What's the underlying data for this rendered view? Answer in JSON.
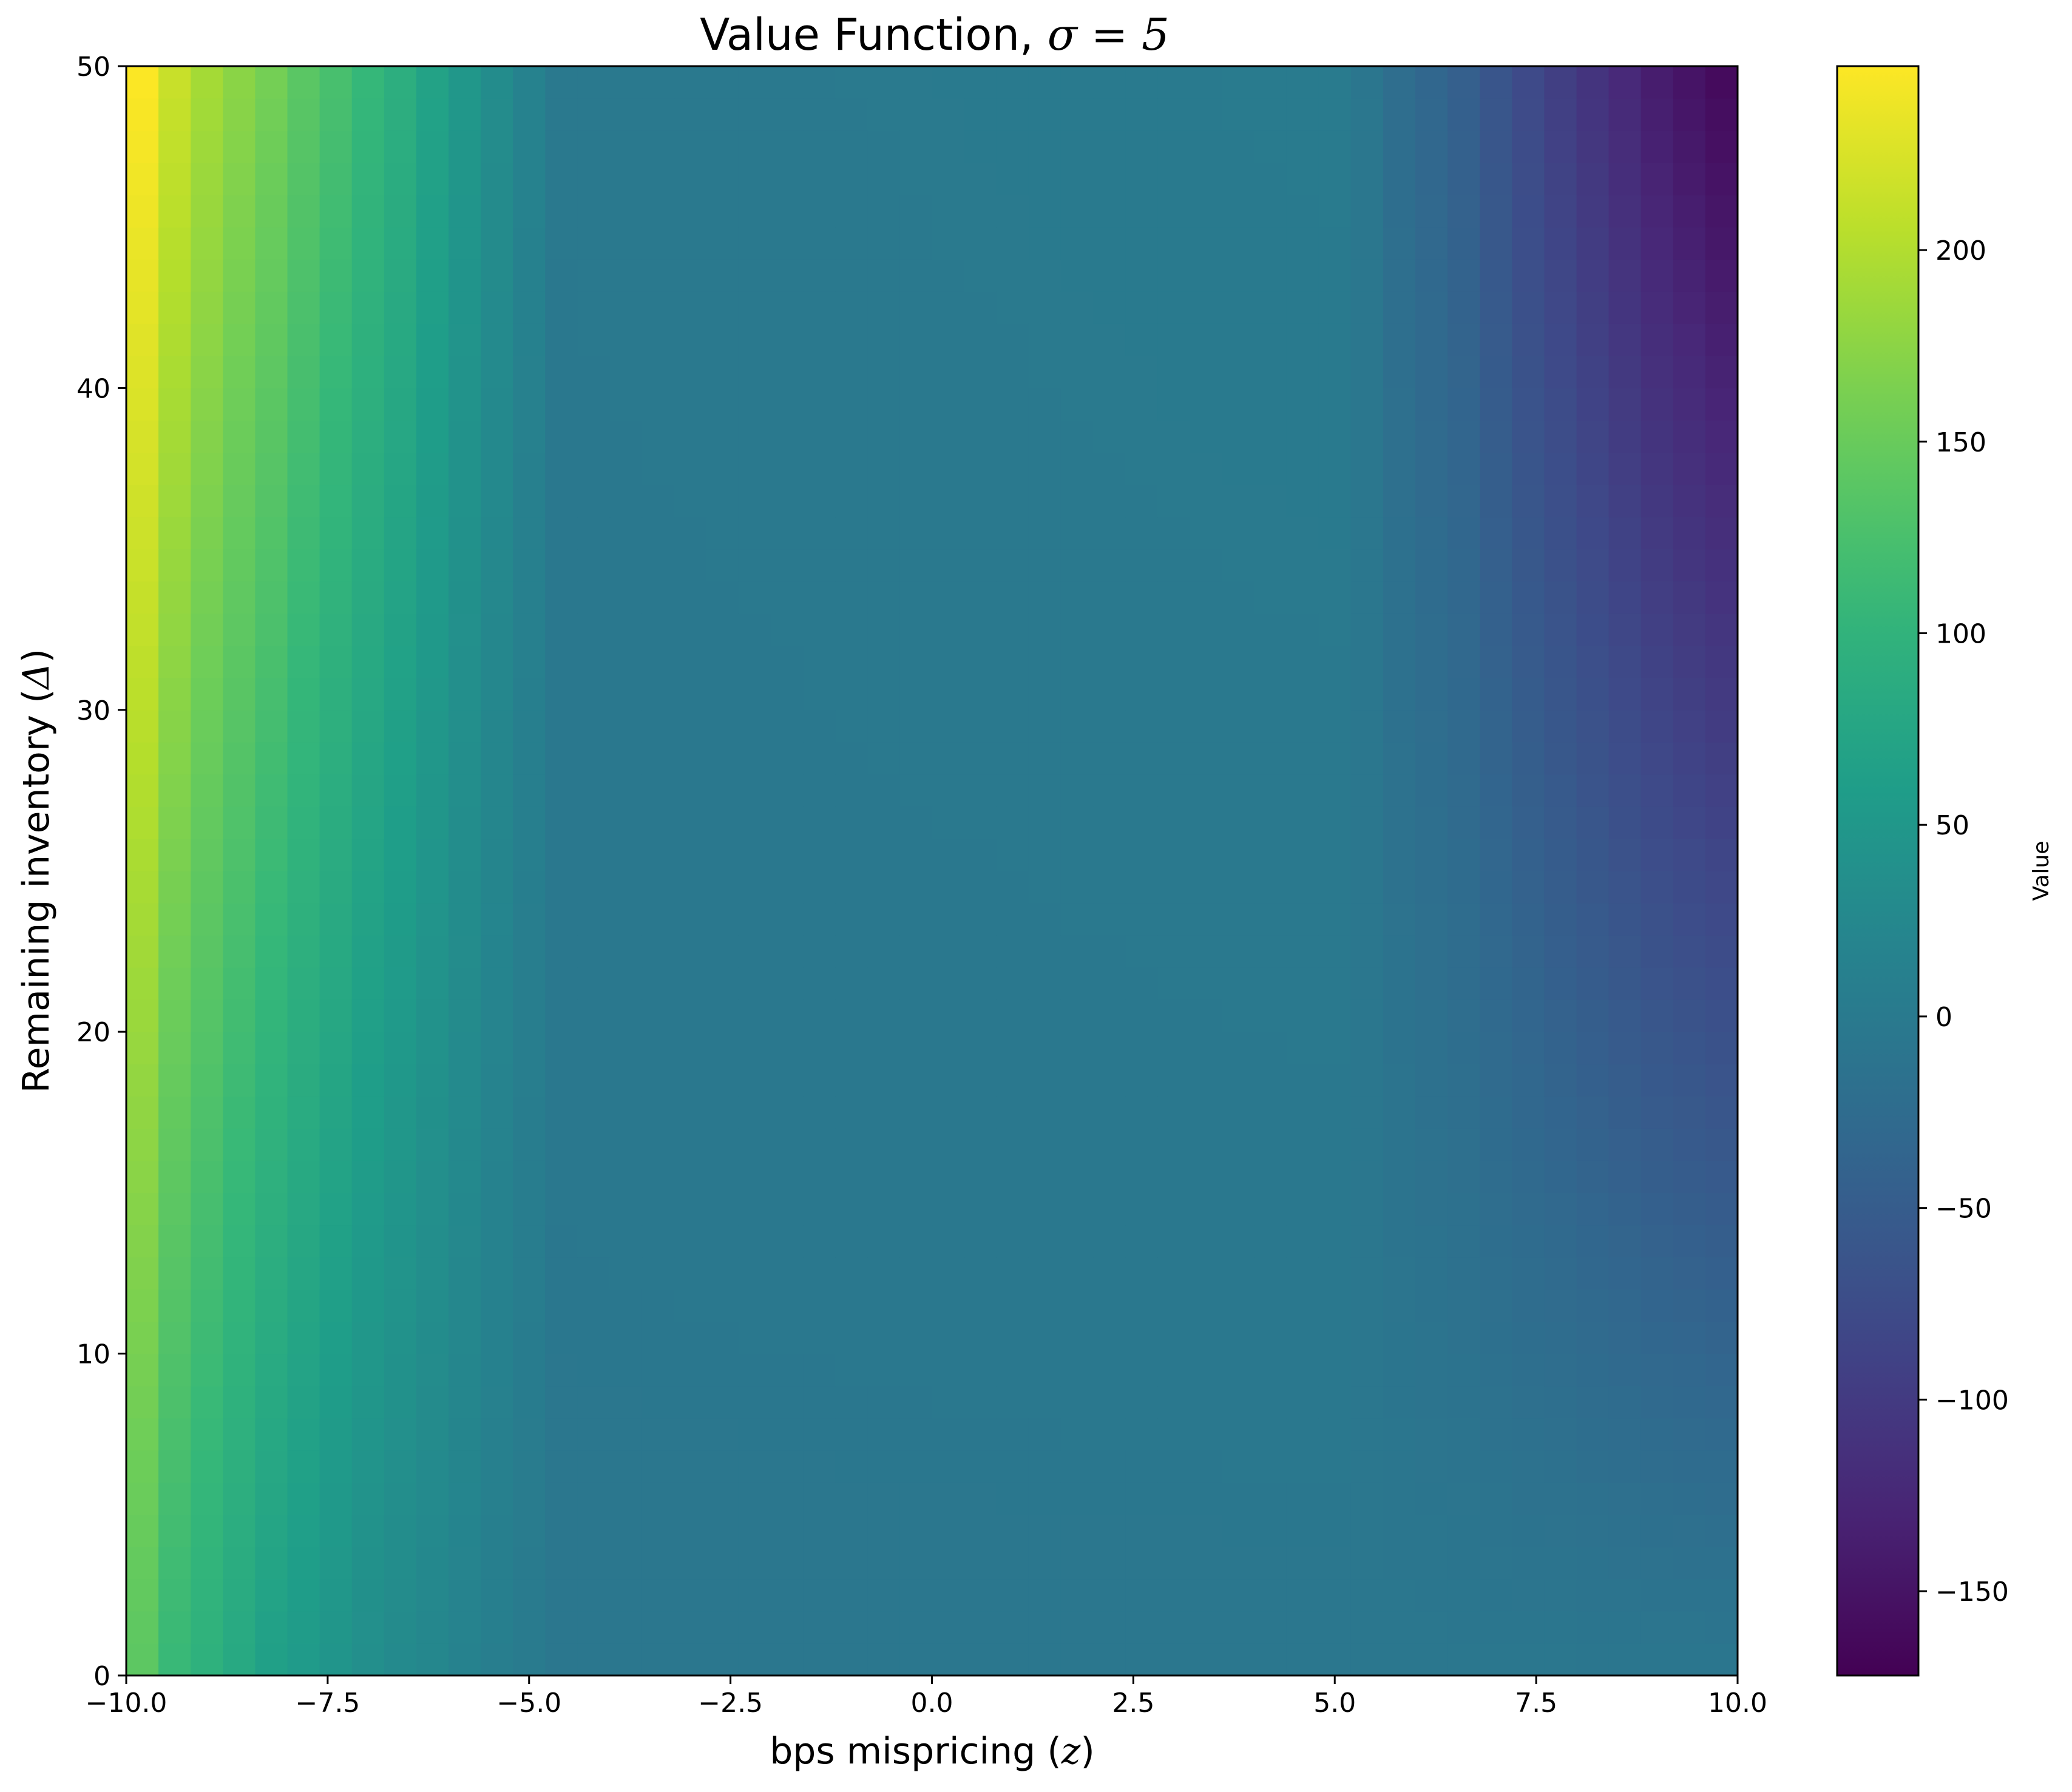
{
  "chart_data": {
    "type": "heatmap",
    "title_text": "Value Function, ",
    "title_math": "σ = 5",
    "xlabel_text": "bps mispricing (",
    "xlabel_math": "z",
    "xlabel_close": ")",
    "ylabel_text": "Remaining inventory (",
    "ylabel_math": "Δ",
    "ylabel_close": ")",
    "colorbar_label": "Value",
    "colormap": "viridis",
    "xlim": [
      -10.0,
      10.0
    ],
    "ylim": [
      0,
      50
    ],
    "vlim": [
      -172,
      248
    ],
    "x_ticks": [
      -10.0,
      -7.5,
      -5.0,
      -2.5,
      0.0,
      2.5,
      5.0,
      7.5,
      10.0
    ],
    "x_tick_labels": [
      "−10.0",
      "−7.5",
      "−5.0",
      "−2.5",
      "0.0",
      "2.5",
      "5.0",
      "7.5",
      "10.0"
    ],
    "y_ticks": [
      0,
      10,
      20,
      30,
      40,
      50
    ],
    "y_tick_labels": [
      "0",
      "10",
      "20",
      "30",
      "40",
      "50"
    ],
    "colorbar_ticks": [
      200,
      150,
      100,
      50,
      0,
      -50,
      -100,
      -150
    ],
    "colorbar_tick_labels": [
      "200",
      "150",
      "100",
      "50",
      "0",
      "−50",
      "−100",
      "−150"
    ],
    "grid": false,
    "x_cells": 50,
    "y_cells": 50,
    "column_profile_bottom": [
      {
        "x": -10.0,
        "value": 140
      },
      {
        "x": -9.6,
        "value": 110
      },
      {
        "x": -9.2,
        "value": 95
      },
      {
        "x": -8.8,
        "value": 80
      },
      {
        "x": -8.4,
        "value": 65
      },
      {
        "x": -8.0,
        "value": 55
      },
      {
        "x": -7.6,
        "value": 45
      },
      {
        "x": -7.2,
        "value": 35
      },
      {
        "x": -6.8,
        "value": 28
      },
      {
        "x": -6.4,
        "value": 22
      },
      {
        "x": -6.0,
        "value": 15
      },
      {
        "x": -5.6,
        "value": 8
      },
      {
        "x": -5.2,
        "value": 2
      },
      {
        "x": -4.8,
        "value": -5
      },
      {
        "x": 5.0,
        "value": -5
      },
      {
        "x": 10.0,
        "value": -5
      }
    ],
    "column_profile_top": [
      {
        "x": -10.0,
        "value": 248
      },
      {
        "x": -9.6,
        "value": 215
      },
      {
        "x": -9.2,
        "value": 192
      },
      {
        "x": -8.8,
        "value": 175
      },
      {
        "x": -8.4,
        "value": 160
      },
      {
        "x": -8.0,
        "value": 140
      },
      {
        "x": -7.6,
        "value": 125
      },
      {
        "x": -7.2,
        "value": 108
      },
      {
        "x": -6.8,
        "value": 92
      },
      {
        "x": -6.4,
        "value": 70
      },
      {
        "x": -6.0,
        "value": 50
      },
      {
        "x": -5.6,
        "value": 32
      },
      {
        "x": -5.2,
        "value": 15
      },
      {
        "x": -4.8,
        "value": -2
      },
      {
        "x": 5.0,
        "value": 2
      },
      {
        "x": 5.6,
        "value": -22
      },
      {
        "x": 6.4,
        "value": -45
      },
      {
        "x": 7.2,
        "value": -80
      },
      {
        "x": 8.0,
        "value": -110
      },
      {
        "x": 8.8,
        "value": -140
      },
      {
        "x": 10.0,
        "value": -172
      }
    ]
  }
}
